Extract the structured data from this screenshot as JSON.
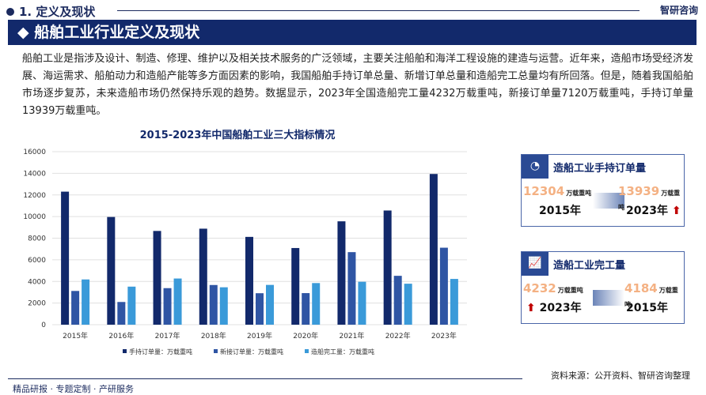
{
  "header": {
    "section": "1. 定义及现状",
    "logo": "智研咨询",
    "banner": "◆ 船舶工业行业定义及现状"
  },
  "paragraph": "船舶工业是指涉及设计、制造、修理、维护以及相关技术服务的广泛领域，主要关注船舶和海洋工程设施的建造与运营。近年来，造船市场受经济发展、海运需求、船舶动力和造船产能等多方面因素的影响，我国船舶手持订单总量、新增订单总量和造船完工总量均有所回落。但是，随着我国船舶市场逐步复苏，未来造船市场仍然保持乐观的趋势。数据显示，2023年全国造船完工量4232万载重吨，新接订单量7120万载重吨，手持订单量13939万载重吨。",
  "chart_data": {
    "type": "bar",
    "title": "2015-2023年中国船舶工业三大指标情况",
    "categories": [
      "2015年",
      "2016年",
      "2017年",
      "2018年",
      "2019年",
      "2020年",
      "2021年",
      "2022年",
      "2023年"
    ],
    "series": [
      {
        "name": "手持订单量：万载重吨",
        "color": "#12296b",
        "values": [
          12304,
          9960,
          8670,
          8880,
          8120,
          7090,
          9560,
          10560,
          13939
        ]
      },
      {
        "name": "新接订单量：万载重吨",
        "color": "#2f55a4",
        "values": [
          3120,
          2100,
          3380,
          3670,
          2910,
          2920,
          6710,
          4520,
          7120
        ]
      },
      {
        "name": "造船完工量：万载重吨",
        "color": "#3a9ad9",
        "values": [
          4184,
          3520,
          4270,
          3460,
          3680,
          3850,
          3970,
          3790,
          4232
        ]
      }
    ],
    "ylim": [
      0,
      16000
    ],
    "yticks": [
      "0",
      "2000",
      "4000",
      "6000",
      "8000",
      "10000",
      "12000",
      "14000",
      "16000"
    ],
    "grid": true,
    "legend": "bottom"
  },
  "cards": [
    {
      "title": "造船工业手持订单量",
      "left_value": "12304",
      "left_unit": "万载重吨",
      "left_year": "2015年",
      "right_value": "13939",
      "right_unit": "万载重吨",
      "right_year": "2023年",
      "up": "⬆"
    },
    {
      "title": "造船工业完工量",
      "left_value": "4232",
      "left_unit": "万载重吨",
      "left_year": "2023年",
      "right_value": "4184",
      "right_unit": "万载重吨",
      "right_year": "2015年",
      "up": "⬆"
    }
  ],
  "footer": {
    "source": "资料来源：公开资料、智研咨询整理",
    "slogan": "精品研报 · 专题定制 · 产研服务"
  }
}
